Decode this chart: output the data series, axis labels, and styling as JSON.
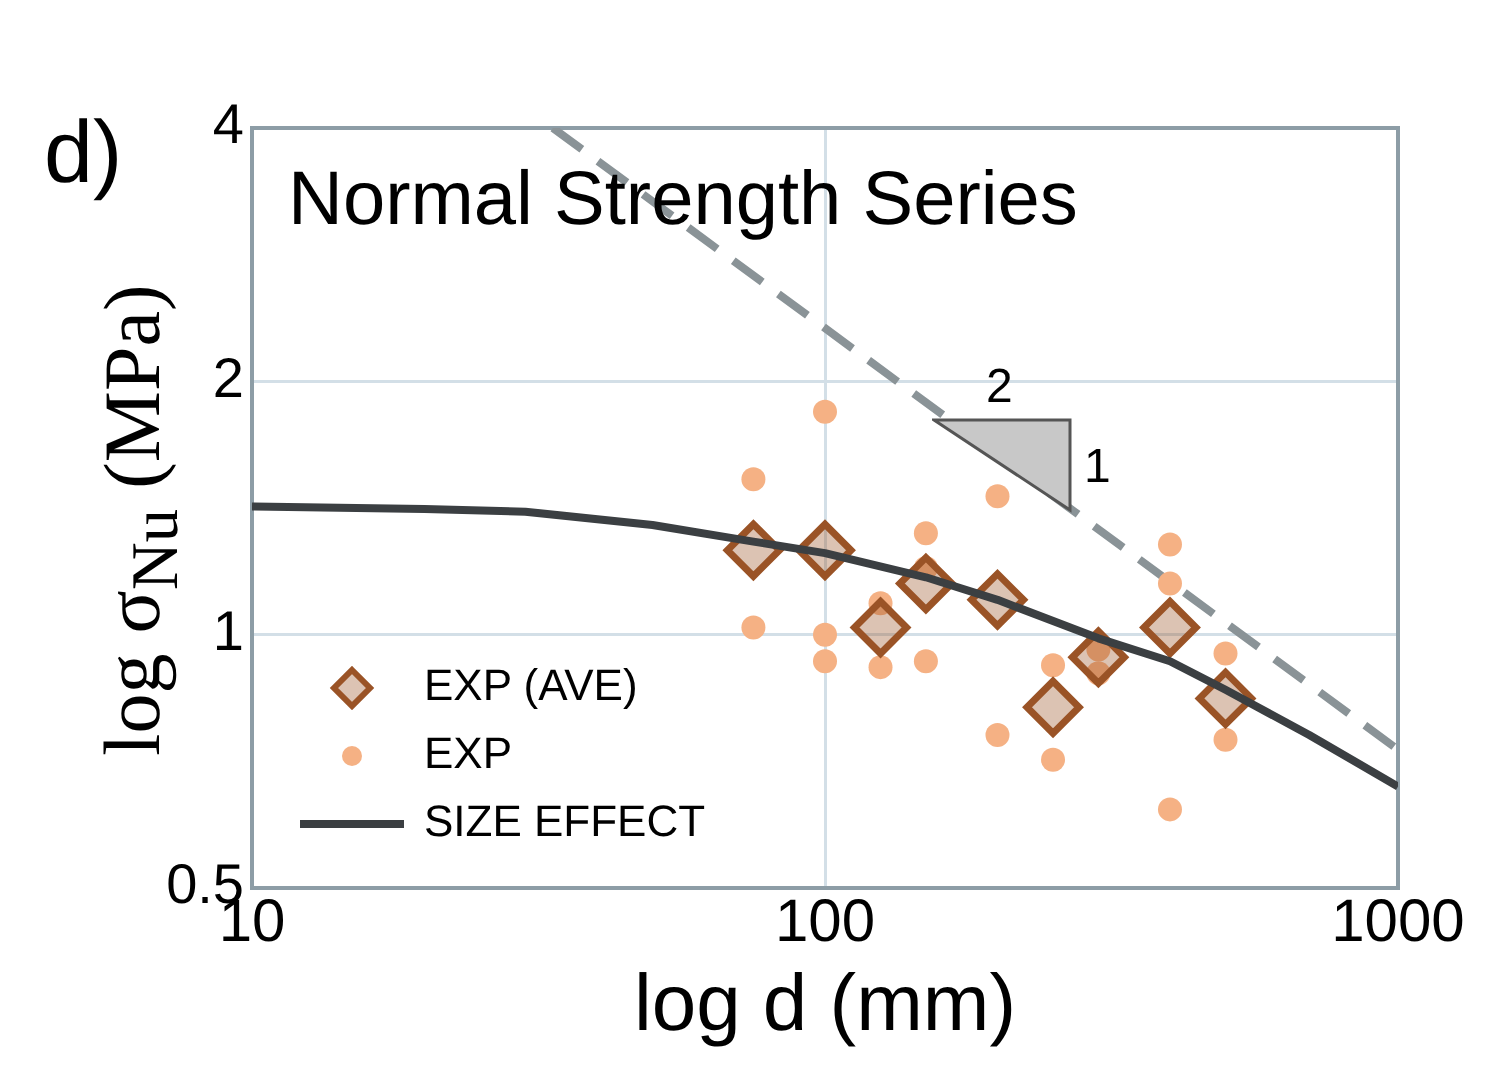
{
  "chart_data": {
    "type": "scatter",
    "title": "Normal Strength Series",
    "xlabel": "log d (mm)",
    "ylabel": "log σ$_{Nu}$ (MPa)",
    "annotations": [
      "d)",
      "2",
      "1"
    ],
    "log": "xy",
    "xlim": [
      10,
      1000
    ],
    "ylim": [
      0.5,
      4
    ],
    "xticks": [
      10,
      100,
      1000
    ],
    "yticks": [
      0.5,
      1,
      2,
      4
    ],
    "grid": true,
    "legend": "bottom left",
    "series": [
      {
        "name": "EXP (AVE)",
        "marker": "diamond",
        "color": "#9a5326",
        "x": [
          75,
          100,
          125,
          150,
          200,
          250,
          300,
          400,
          500
        ],
        "values": [
          1.26,
          1.26,
          1.02,
          1.15,
          1.1,
          0.82,
          0.94,
          1.02,
          0.84
        ]
      },
      {
        "name": "EXP",
        "marker": "circle",
        "color": "#f5b184",
        "x": [
          75,
          75,
          100,
          100,
          100,
          125,
          125,
          150,
          150,
          150,
          200,
          200,
          250,
          250,
          300,
          300,
          400,
          400,
          400,
          500,
          500
        ],
        "values": [
          1.53,
          1.02,
          1.84,
          1.0,
          0.93,
          1.09,
          0.915,
          1.32,
          1.2,
          0.93,
          1.46,
          0.76,
          0.92,
          0.71,
          0.96,
          0.9,
          1.28,
          1.15,
          0.62,
          0.95,
          0.75
        ]
      },
      {
        "name": "SIZE EFFECT",
        "type": "line",
        "marker": "none",
        "line_style": "solid",
        "color": "#3b3f42",
        "x": [
          10,
          20,
          30,
          50,
          75,
          100,
          150,
          200,
          300,
          400,
          500,
          700,
          1000
        ],
        "values": [
          1.42,
          1.41,
          1.4,
          1.35,
          1.29,
          1.25,
          1.17,
          1.1,
          0.99,
          0.93,
          0.86,
          0.76,
          0.66
        ]
      },
      {
        "type": "line",
        "marker": "none",
        "line_style": "dashed",
        "color": "#8a9397",
        "x": [
          33.5,
          1000
        ],
        "values": [
          4,
          0.73
        ]
      }
    ]
  }
}
